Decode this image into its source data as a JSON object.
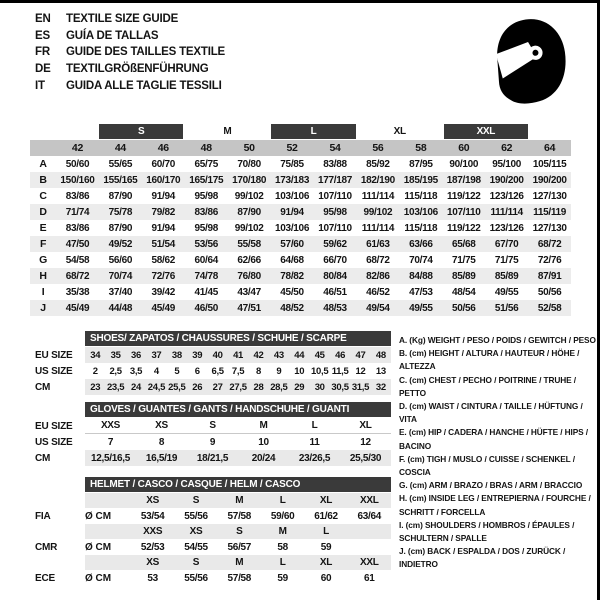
{
  "languages": [
    {
      "code": "EN",
      "text": "TEXTILE SIZE GUIDE"
    },
    {
      "code": "ES",
      "text": "GUÍA DE TALLAS"
    },
    {
      "code": "FR",
      "text": "GUIDE DES TAILLES TEXTILE"
    },
    {
      "code": "DE",
      "text": "TEXTILGRÖßENFÜHRUNG"
    },
    {
      "code": "IT",
      "text": "GUIDA ALLE TAGLIE TESSILI"
    }
  ],
  "icons": {
    "helmet": "racing-helmet-icon"
  },
  "colors": {
    "dark_bar": "#3a3a3a",
    "column_header_grey": "#c5c5c5",
    "alt_row_grey": "#ececec",
    "section_row_grey": "#e9e9e9",
    "text": "#141414"
  },
  "main_table": {
    "size_groups": [
      {
        "label": "S",
        "dark": true
      },
      {
        "label": "M",
        "dark": false
      },
      {
        "label": "L",
        "dark": true
      },
      {
        "label": "XL",
        "dark": false
      },
      {
        "label": "XXL",
        "dark": true
      }
    ],
    "columns": [
      "42",
      "44",
      "46",
      "48",
      "50",
      "52",
      "54",
      "56",
      "58",
      "60",
      "62",
      "64"
    ],
    "rows": [
      {
        "label": "A",
        "values": [
          "50/60",
          "55/65",
          "60/70",
          "65/75",
          "70/80",
          "75/85",
          "83/88",
          "85/92",
          "87/95",
          "90/100",
          "95/100",
          "105/115"
        ]
      },
      {
        "label": "B",
        "values": [
          "150/160",
          "155/165",
          "160/170",
          "165/175",
          "170/180",
          "173/183",
          "177/187",
          "182/190",
          "185/195",
          "187/198",
          "190/200",
          "190/200"
        ]
      },
      {
        "label": "C",
        "values": [
          "83/86",
          "87/90",
          "91/94",
          "95/98",
          "99/102",
          "103/106",
          "107/110",
          "111/114",
          "115/118",
          "119/122",
          "123/126",
          "127/130"
        ]
      },
      {
        "label": "D",
        "values": [
          "71/74",
          "75/78",
          "79/82",
          "83/86",
          "87/90",
          "91/94",
          "95/98",
          "99/102",
          "103/106",
          "107/110",
          "111/114",
          "115/119"
        ]
      },
      {
        "label": "E",
        "values": [
          "83/86",
          "87/90",
          "91/94",
          "95/98",
          "99/102",
          "103/106",
          "107/110",
          "111/114",
          "115/118",
          "119/122",
          "123/126",
          "127/130"
        ]
      },
      {
        "label": "F",
        "values": [
          "47/50",
          "49/52",
          "51/54",
          "53/56",
          "55/58",
          "57/60",
          "59/62",
          "61/63",
          "63/66",
          "65/68",
          "67/70",
          "68/72"
        ]
      },
      {
        "label": "G",
        "values": [
          "54/58",
          "56/60",
          "58/62",
          "60/64",
          "62/66",
          "64/68",
          "66/70",
          "68/72",
          "70/74",
          "71/75",
          "71/75",
          "72/76"
        ]
      },
      {
        "label": "H",
        "values": [
          "68/72",
          "70/74",
          "72/76",
          "74/78",
          "76/80",
          "78/82",
          "80/84",
          "82/86",
          "84/88",
          "85/89",
          "85/89",
          "87/91"
        ]
      },
      {
        "label": "I",
        "values": [
          "35/38",
          "37/40",
          "39/42",
          "41/45",
          "43/47",
          "45/50",
          "46/51",
          "46/52",
          "47/53",
          "48/54",
          "49/55",
          "50/56"
        ]
      },
      {
        "label": "J",
        "values": [
          "45/49",
          "44/48",
          "45/49",
          "46/50",
          "47/51",
          "48/52",
          "48/53",
          "49/54",
          "49/55",
          "50/56",
          "51/56",
          "52/58"
        ]
      }
    ]
  },
  "shoes": {
    "title": "SHOES/ ZAPATOS / CHAUSSURES / SCHUHE / SCARPE",
    "rows": [
      {
        "label": "EU SIZE",
        "grey": true,
        "values": [
          "34",
          "35",
          "36",
          "37",
          "38",
          "39",
          "40",
          "41",
          "42",
          "43",
          "44",
          "45",
          "46",
          "47",
          "48"
        ]
      },
      {
        "label": "US SIZE",
        "grey": false,
        "values": [
          "2",
          "2,5",
          "3,5",
          "4",
          "5",
          "6",
          "6,5",
          "7,5",
          "8",
          "9",
          "10",
          "10,5",
          "11,5",
          "12",
          "13"
        ]
      },
      {
        "label": "CM",
        "grey": true,
        "values": [
          "23",
          "23,5",
          "24",
          "24,5",
          "25,5",
          "26",
          "27",
          "27,5",
          "28",
          "28,5",
          "29",
          "30",
          "30,5",
          "31,5",
          "32"
        ]
      }
    ]
  },
  "gloves": {
    "title": "GLOVES / GUANTES / GANTS / HANDSCHUHE / GUANTI",
    "rows": [
      {
        "label": "EU SIZE",
        "grey": false,
        "underline": true,
        "values": [
          "XXS",
          "XS",
          "S",
          "M",
          "L",
          "XL"
        ]
      },
      {
        "label": "US SIZE",
        "grey": false,
        "underline": false,
        "values": [
          "7",
          "8",
          "9",
          "10",
          "11",
          "12"
        ]
      },
      {
        "label": "CM",
        "grey": true,
        "underline": false,
        "values": [
          "12,5/16,5",
          "16,5/19",
          "18/21,5",
          "20/24",
          "23/26,5",
          "25,5/30"
        ]
      }
    ]
  },
  "helmet": {
    "title": "HELMET / CASCO / CASQUE / HELM / CASCO",
    "sections": [
      {
        "label": "FIA",
        "unit": "Ø CM",
        "sizes": [
          "XS",
          "S",
          "M",
          "L",
          "XL",
          "XXL"
        ],
        "values": [
          "53/54",
          "55/56",
          "57/58",
          "59/60",
          "61/62",
          "63/64"
        ]
      },
      {
        "label": "CMR",
        "unit": "Ø CM",
        "sizes": [
          "XXS",
          "XS",
          "S",
          "M",
          "L",
          ""
        ],
        "values": [
          "52/53",
          "54/55",
          "56/57",
          "58",
          "59",
          ""
        ]
      },
      {
        "label": "ECE",
        "unit": "Ø CM",
        "sizes": [
          "XS",
          "S",
          "M",
          "L",
          "XL",
          "XXL"
        ],
        "values": [
          "53",
          "55/56",
          "57/58",
          "59",
          "60",
          "61"
        ]
      }
    ]
  },
  "legend": [
    "A. (Kg) WEIGHT / PESO / POIDS / GEWITCH / PESO",
    "B. (cm) HEIGHT / ALTURA / HAUTEUR / HÖHE / ALTEZZA",
    "C. (cm) CHEST / PECHO / POITRINE / TRUHE / PETTO",
    "D. (cm) WAIST / CINTURA / TAILLE / HÜFTUNG / VITA",
    "E. (cm) HIP / CADERA / HANCHE / HÜFTE / HIPS /  BACINO",
    "F. (cm) TIGH / MUSLO / CUISSE / SCHENKEL / COSCIA",
    "G. (cm) ARM  / BRAZO / BRAS / ARM / BRACCIO",
    "H. (cm) INSIDE LEG / ENTREPIERNA / FOURCHE / SCHRITT / FORCELLA",
    "I.  (cm) SHOULDERS / HOMBROS / ÉPAULES / SCHULTERN / SPALLE",
    "J. (cm) BACK / ESPALDA / DOS / ZURÜCK / INDIETRO"
  ]
}
